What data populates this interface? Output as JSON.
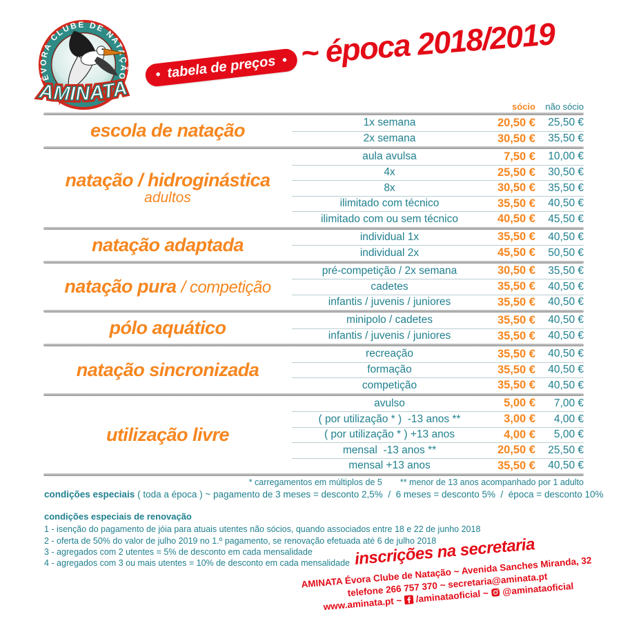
{
  "logo": {
    "ring_text": "ÉVORA CLUBE DE NATAÇÃO",
    "name": "AMINATA"
  },
  "header": {
    "badge_bullet": "•",
    "badge_text": "tabela de preços",
    "season_title": "~ época 2018/2019"
  },
  "columns": {
    "member": "sócio",
    "non_member": "não sócio"
  },
  "table": {
    "groups": [
      {
        "bold": "escola de natação",
        "light": "",
        "subtitle": "",
        "rows": [
          {
            "item": "1x semana",
            "socio": "20,50 €",
            "nao_socio": "25,50 €"
          },
          {
            "item": "2x semana",
            "socio": "30,50 €",
            "nao_socio": "35,50 €"
          }
        ]
      },
      {
        "bold": "natação / hidroginástica",
        "light": "",
        "subtitle": "adultos",
        "rows": [
          {
            "item": "aula avulsa",
            "socio": "7,50 €",
            "nao_socio": "10,00 €"
          },
          {
            "item": "4x",
            "socio": "25,50 €",
            "nao_socio": "30,50 €"
          },
          {
            "item": "8x",
            "socio": "30,50 €",
            "nao_socio": "35,50 €"
          },
          {
            "item": "ilimitado com técnico",
            "socio": "35,50 €",
            "nao_socio": "40,50 €"
          },
          {
            "item": "ilimitado com ou sem técnico",
            "socio": "40,50 €",
            "nao_socio": "45,50 €"
          }
        ]
      },
      {
        "bold": "natação adaptada",
        "light": "",
        "subtitle": "",
        "rows": [
          {
            "item": "individual 1x",
            "socio": "35,50 €",
            "nao_socio": "40,50 €"
          },
          {
            "item": "individual 2x",
            "socio": "45,50 €",
            "nao_socio": "50,50 €"
          }
        ]
      },
      {
        "bold": "natação pura",
        "light": "/ competição",
        "subtitle": "",
        "rows": [
          {
            "item": "pré-competição / 2x semana",
            "socio": "30,50 €",
            "nao_socio": "35,50 €"
          },
          {
            "item": "cadetes",
            "socio": "35,50 €",
            "nao_socio": "40,50 €"
          },
          {
            "item": "infantis / juvenis / juniores",
            "socio": "35,50 €",
            "nao_socio": "40,50 €"
          }
        ]
      },
      {
        "bold": "pólo aquático",
        "light": "",
        "subtitle": "",
        "rows": [
          {
            "item": "minipolo / cadetes",
            "socio": "35,50 €",
            "nao_socio": "40,50 €"
          },
          {
            "item": "infantis / juvenis / juniores",
            "socio": "35,50 €",
            "nao_socio": "40,50 €"
          }
        ]
      },
      {
        "bold": "natação sincronizada",
        "light": "",
        "subtitle": "",
        "rows": [
          {
            "item": "recreação",
            "socio": "35,50 €",
            "nao_socio": "40,50 €"
          },
          {
            "item": "formação",
            "socio": "35,50 €",
            "nao_socio": "40,50 €"
          },
          {
            "item": "competição",
            "socio": "35,50 €",
            "nao_socio": "40,50 €"
          }
        ]
      },
      {
        "bold": "utilização livre",
        "light": "",
        "subtitle": "",
        "rows": [
          {
            "item": "avulso",
            "socio": "5,00 €",
            "nao_socio": "7,00 €"
          },
          {
            "item": "( por utilização * )  -13 anos **",
            "socio": "3,00 €",
            "nao_socio": "4,00 €"
          },
          {
            "item": "( por utilização * ) +13 anos",
            "socio": "4,00 €",
            "nao_socio": "5,00 €"
          },
          {
            "item": "mensal  -13 anos **",
            "socio": "20,50 €",
            "nao_socio": "25,50 €"
          },
          {
            "item": "mensal +13 anos",
            "socio": "35,50 €",
            "nao_socio": "40,50 €"
          }
        ]
      }
    ],
    "footnote_1": "* carregamentos em múltiplos de 5",
    "footnote_2": "** menor de 13 anos acompanhado por 1 adulto"
  },
  "special_conditions": {
    "title": "condições especiais",
    "text": " ( toda a época ) ~ pagamento de 3 meses = desconto 2,5%  /  6 meses = desconto 5%  /  época = desconto 10%"
  },
  "renewal_conditions": {
    "title": "condições especiais de renovação",
    "items": [
      "1 - isenção do pagamento de jóia para atuais utentes não sócios, quando associados entre 18 e 22 de junho 2018",
      "2 - oferta de 50% do valor de julho 2019 no 1.º pagamento, se renovação efetuada até 6 de julho 2018",
      "3 - agregados com 2 utentes = 5% de desconto em cada mensalidade",
      "4 - agregados com 3 ou mais utentes = 10% de desconto em cada mensalidade"
    ]
  },
  "contact": {
    "headline": "inscrições na secretaria",
    "address_line": "AMINATA Évora Clube de Natação ~ Avenida Sanches Miranda, 32",
    "phone_line": "telefone 266 757 370 ~ secretaria@aminata.pt",
    "website": "www.aminata.pt",
    "sep1": "~",
    "facebook_handle": "/aminataoficial",
    "sep2": "~",
    "instagram_handle": "@aminataoficial"
  },
  "colors": {
    "orange": "#F6861F",
    "teal": "#20808F",
    "red": "#E30B17",
    "separator_gray": "#A9A9A9"
  }
}
